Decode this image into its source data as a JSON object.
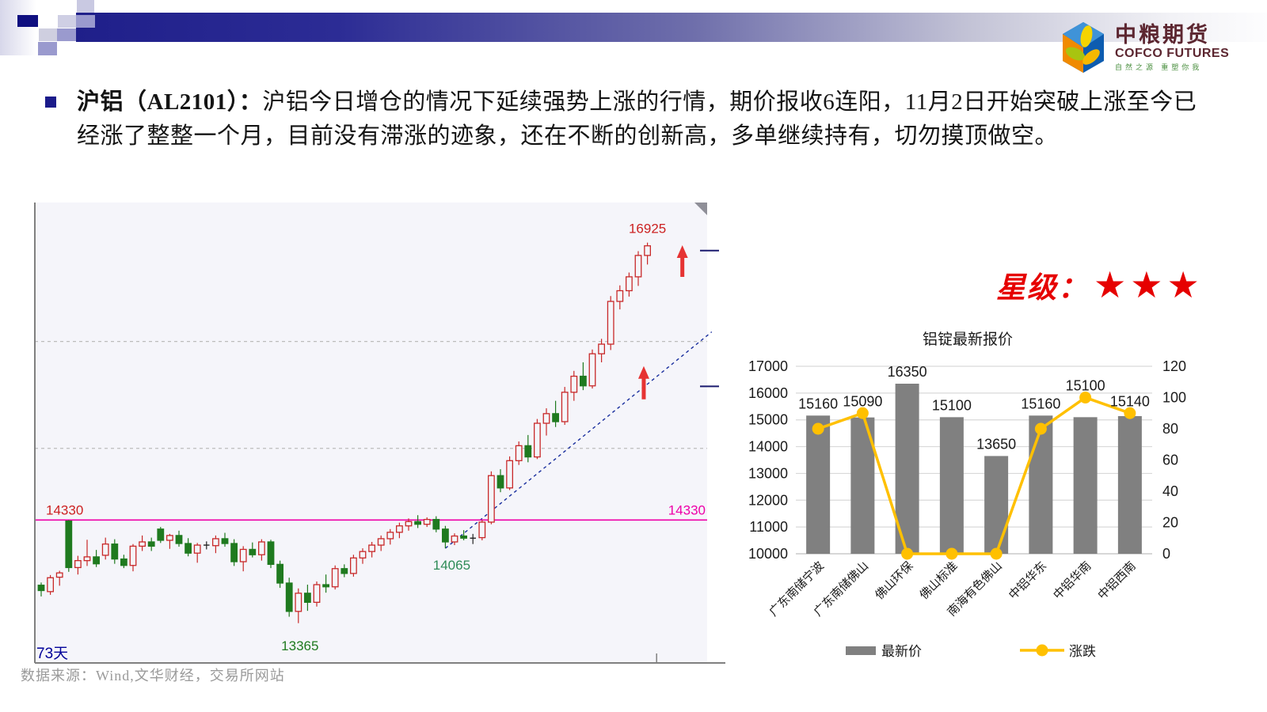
{
  "bullet": {
    "marker": "■",
    "title_bold": "沪铝（AL2101）：",
    "body": "沪铝今日增仓的情况下延续强势上涨的行情，期价报收6连阳，11月2日开始突破上涨至今已经涨了整整一个月，目前没有滞涨的迹象，还在不断的创新高，多单继续持有，切勿摸顶做空。"
  },
  "rating": {
    "label": "星级：",
    "stars": "★★★",
    "color": "#e60000"
  },
  "logo": {
    "name_cn": "中粮期货",
    "name_en": "COFCO FUTURES",
    "slogan": "自然之源 重塑你我"
  },
  "footer": {
    "source": "数据来源：Wind,文华财经，交易所网站"
  },
  "chart_data": [
    {
      "type": "candlestick",
      "days_label": "73天",
      "ylim": [
        13000,
        17300
      ],
      "grid_values": [
        15000,
        16000
      ],
      "level_line": {
        "value": 14330,
        "label": "14330",
        "color": "#ee00a8",
        "left_label_color": "#cc2222"
      },
      "annotations": {
        "high": {
          "bar": 66,
          "price": 16925,
          "label": "16925",
          "color": "#cc2222"
        },
        "low": {
          "bar": 28,
          "price": 13365,
          "label": "13365",
          "color": "#1f7a1f"
        },
        "pivot": {
          "bar": 44,
          "price": 14065,
          "label": "14065",
          "color": "#2e8b57"
        }
      },
      "trendline": {
        "from": {
          "bar": 44,
          "price": 14065
        },
        "to": {
          "bar": 73,
          "price": 16090
        },
        "color": "#1a2f9e"
      },
      "arrows": [
        {
          "x_bar": 69.8,
          "price_top": 16900,
          "len": 40
        },
        {
          "x_bar": 65.6,
          "price_top": 15770,
          "len": 42
        }
      ],
      "right_ticks": [
        16850,
        15580
      ],
      "axis_tick_bar": 67,
      "colors": {
        "up": "#c82828",
        "down": "#1f7a1f",
        "doji": "#222222",
        "background": "#f5f5fa",
        "axis": "#808080"
      },
      "candles": [
        [
          13720,
          13745,
          13615,
          13670
        ],
        [
          13660,
          13815,
          13630,
          13790
        ],
        [
          13795,
          13855,
          13715,
          13835
        ],
        [
          14320,
          14330,
          13845,
          13885
        ],
        [
          13885,
          13995,
          13820,
          13950
        ],
        [
          13950,
          14145,
          13900,
          13985
        ],
        [
          13985,
          14050,
          13890,
          13920
        ],
        [
          14000,
          14165,
          13960,
          14105
        ],
        [
          14105,
          14150,
          13920,
          13965
        ],
        [
          13965,
          14005,
          13880,
          13905
        ],
        [
          13905,
          14105,
          13850,
          14085
        ],
        [
          14085,
          14185,
          14040,
          14125
        ],
        [
          14125,
          14165,
          14040,
          14085
        ],
        [
          14245,
          14265,
          14115,
          14140
        ],
        [
          14140,
          14200,
          14060,
          14185
        ],
        [
          14185,
          14230,
          14080,
          14110
        ],
        [
          14110,
          14160,
          13990,
          14020
        ],
        [
          14020,
          14115,
          13930,
          14095
        ],
        [
          14095,
          14130,
          14055,
          14090
        ],
        [
          14090,
          14185,
          14020,
          14155
        ],
        [
          14155,
          14210,
          14080,
          14110
        ],
        [
          14110,
          14150,
          13900,
          13940
        ],
        [
          13940,
          14085,
          13850,
          14055
        ],
        [
          14055,
          14120,
          13980,
          14005
        ],
        [
          14005,
          14150,
          13950,
          14125
        ],
        [
          14125,
          14145,
          13880,
          13915
        ],
        [
          13915,
          13950,
          13695,
          13740
        ],
        [
          13740,
          13790,
          13425,
          13475
        ],
        [
          13475,
          13690,
          13365,
          13645
        ],
        [
          13645,
          13725,
          13480,
          13560
        ],
        [
          13560,
          13755,
          13520,
          13725
        ],
        [
          13725,
          13820,
          13650,
          13705
        ],
        [
          13705,
          13905,
          13680,
          13875
        ],
        [
          13875,
          13915,
          13795,
          13830
        ],
        [
          13830,
          14005,
          13800,
          13975
        ],
        [
          13975,
          14065,
          13920,
          14035
        ],
        [
          14035,
          14125,
          13980,
          14095
        ],
        [
          14095,
          14185,
          14040,
          14155
        ],
        [
          14155,
          14245,
          14100,
          14215
        ],
        [
          14215,
          14305,
          14160,
          14275
        ],
        [
          14275,
          14345,
          14230,
          14315
        ],
        [
          14315,
          14375,
          14255,
          14290
        ],
        [
          14290,
          14355,
          14265,
          14335
        ],
        [
          14335,
          14365,
          14215,
          14245
        ],
        [
          14245,
          14275,
          14065,
          14125
        ],
        [
          14125,
          14205,
          14095,
          14180
        ],
        [
          14180,
          14235,
          14140,
          14160
        ],
        [
          14160,
          14200,
          14105,
          14165
        ],
        [
          14165,
          14330,
          14140,
          14310
        ],
        [
          14310,
          14785,
          14290,
          14745
        ],
        [
          14745,
          14805,
          14590,
          14630
        ],
        [
          14630,
          14925,
          14610,
          14885
        ],
        [
          14885,
          15065,
          14845,
          15025
        ],
        [
          15025,
          15125,
          14870,
          14920
        ],
        [
          14920,
          15275,
          14900,
          15235
        ],
        [
          15235,
          15375,
          15120,
          15325
        ],
        [
          15325,
          15445,
          15200,
          15250
        ],
        [
          15250,
          15575,
          15220,
          15525
        ],
        [
          15525,
          15725,
          15445,
          15675
        ],
        [
          15675,
          15805,
          15545,
          15585
        ],
        [
          15585,
          15925,
          15560,
          15885
        ],
        [
          15885,
          16025,
          15805,
          15975
        ],
        [
          15975,
          16425,
          15920,
          16375
        ],
        [
          16375,
          16525,
          16300,
          16475
        ],
        [
          16475,
          16645,
          16420,
          16605
        ],
        [
          16605,
          16845,
          16520,
          16805
        ],
        [
          16805,
          16925,
          16720,
          16895
        ]
      ]
    },
    {
      "type": "bar",
      "title": "铝锭最新报价",
      "categories": [
        "广东南储宁波",
        "广东南储佛山",
        "佛山环保",
        "佛山标准",
        "南海有色佛山",
        "中铝华东",
        "中铝华南",
        "中铝西南"
      ],
      "series": [
        {
          "name": "最新价",
          "kind": "bar",
          "axis": "left",
          "color": "#808080",
          "values": [
            15160,
            15090,
            16350,
            15100,
            13650,
            15160,
            15100,
            15140
          ]
        },
        {
          "name": "涨跌",
          "kind": "line",
          "axis": "right",
          "color": "#FFC000",
          "values": [
            80,
            90,
            0,
            0,
            0,
            80,
            100,
            90
          ]
        }
      ],
      "left_axis": {
        "min": 10000,
        "max": 17000,
        "step": 1000
      },
      "right_axis": {
        "min": 0,
        "max": 120,
        "step": 20
      },
      "legend_position": "bottom",
      "grid": true
    }
  ]
}
